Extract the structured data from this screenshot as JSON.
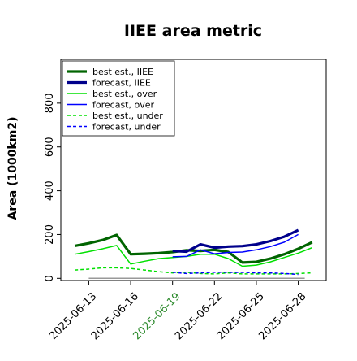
{
  "chart_data": {
    "type": "line",
    "title": "IIEE area metric",
    "xlabel": "",
    "ylabel": "Area (1000km2)",
    "ylim": [
      -10,
      1000
    ],
    "xlim": [
      "2025-06-11",
      "2025-06-30"
    ],
    "yticks": [
      "0",
      "200",
      "400",
      "600",
      "800"
    ],
    "ytick_values": [
      0,
      200,
      400,
      600,
      800
    ],
    "xticks": [
      "2025-06-13",
      "2025-06-16",
      "2025-06-19",
      "2025-06-22",
      "2025-06-25",
      "2025-06-28"
    ],
    "highlighted_xtick": "2025-06-19",
    "highlight_color": "#2e8b2e",
    "grid": false,
    "legend_position": "upper-left",
    "zero_line": {
      "value": 0,
      "color": "#999999"
    },
    "series": [
      {
        "name": "best est., IIEE",
        "color": "#006400",
        "style": "solid",
        "width": "thick",
        "points": [
          [
            "2025-06-12",
            148
          ],
          [
            "2025-06-13",
            160
          ],
          [
            "2025-06-14",
            175
          ],
          [
            "2025-06-15",
            198
          ],
          [
            "2025-06-16",
            110
          ],
          [
            "2025-06-17",
            112
          ],
          [
            "2025-06-18",
            115
          ],
          [
            "2025-06-19",
            120
          ],
          [
            "2025-06-20",
            128
          ],
          [
            "2025-06-21",
            125
          ],
          [
            "2025-06-22",
            130
          ],
          [
            "2025-06-23",
            120
          ],
          [
            "2025-06-24",
            72
          ],
          [
            "2025-06-25",
            75
          ],
          [
            "2025-06-26",
            90
          ],
          [
            "2025-06-27",
            110
          ],
          [
            "2025-06-28",
            135
          ],
          [
            "2025-06-29",
            165
          ]
        ]
      },
      {
        "name": "forecast, IIEE",
        "color": "#00008b",
        "style": "solid",
        "width": "thick",
        "points": [
          [
            "2025-06-19",
            125
          ],
          [
            "2025-06-20",
            122
          ],
          [
            "2025-06-21",
            155
          ],
          [
            "2025-06-22",
            140
          ],
          [
            "2025-06-23",
            145
          ],
          [
            "2025-06-24",
            147
          ],
          [
            "2025-06-25",
            155
          ],
          [
            "2025-06-26",
            170
          ],
          [
            "2025-06-27",
            190
          ],
          [
            "2025-06-28",
            220
          ]
        ]
      },
      {
        "name": "best est., over",
        "color": "#00e000",
        "style": "solid",
        "width": "thin",
        "points": [
          [
            "2025-06-12",
            110
          ],
          [
            "2025-06-13",
            122
          ],
          [
            "2025-06-14",
            135
          ],
          [
            "2025-06-15",
            150
          ],
          [
            "2025-06-16",
            65
          ],
          [
            "2025-06-17",
            78
          ],
          [
            "2025-06-18",
            90
          ],
          [
            "2025-06-19",
            95
          ],
          [
            "2025-06-20",
            100
          ],
          [
            "2025-06-21",
            110
          ],
          [
            "2025-06-22",
            110
          ],
          [
            "2025-06-23",
            90
          ],
          [
            "2025-06-24",
            55
          ],
          [
            "2025-06-25",
            60
          ],
          [
            "2025-06-26",
            75
          ],
          [
            "2025-06-27",
            95
          ],
          [
            "2025-06-28",
            115
          ],
          [
            "2025-06-29",
            140
          ]
        ]
      },
      {
        "name": "forecast, over",
        "color": "#0000ff",
        "style": "solid",
        "width": "thin",
        "points": [
          [
            "2025-06-19",
            98
          ],
          [
            "2025-06-20",
            100
          ],
          [
            "2025-06-21",
            130
          ],
          [
            "2025-06-22",
            112
          ],
          [
            "2025-06-23",
            118
          ],
          [
            "2025-06-24",
            120
          ],
          [
            "2025-06-25",
            130
          ],
          [
            "2025-06-26",
            145
          ],
          [
            "2025-06-27",
            165
          ],
          [
            "2025-06-28",
            200
          ]
        ]
      },
      {
        "name": "best est., under",
        "color": "#00e000",
        "style": "dashed",
        "width": "thin",
        "points": [
          [
            "2025-06-12",
            38
          ],
          [
            "2025-06-13",
            42
          ],
          [
            "2025-06-14",
            48
          ],
          [
            "2025-06-15",
            48
          ],
          [
            "2025-06-16",
            45
          ],
          [
            "2025-06-17",
            38
          ],
          [
            "2025-06-18",
            30
          ],
          [
            "2025-06-19",
            25
          ],
          [
            "2025-06-20",
            28
          ],
          [
            "2025-06-21",
            22
          ],
          [
            "2025-06-22",
            20
          ],
          [
            "2025-06-23",
            25
          ],
          [
            "2025-06-24",
            20
          ],
          [
            "2025-06-25",
            20
          ],
          [
            "2025-06-26",
            20
          ],
          [
            "2025-06-27",
            20
          ],
          [
            "2025-06-28",
            22
          ],
          [
            "2025-06-29",
            25
          ]
        ]
      },
      {
        "name": "forecast, under",
        "color": "#0000ff",
        "style": "dashed",
        "width": "thin",
        "points": [
          [
            "2025-06-19",
            28
          ],
          [
            "2025-06-20",
            22
          ],
          [
            "2025-06-21",
            25
          ],
          [
            "2025-06-22",
            28
          ],
          [
            "2025-06-23",
            27
          ],
          [
            "2025-06-24",
            27
          ],
          [
            "2025-06-25",
            25
          ],
          [
            "2025-06-26",
            25
          ],
          [
            "2025-06-27",
            22
          ],
          [
            "2025-06-28",
            18
          ]
        ]
      }
    ]
  }
}
